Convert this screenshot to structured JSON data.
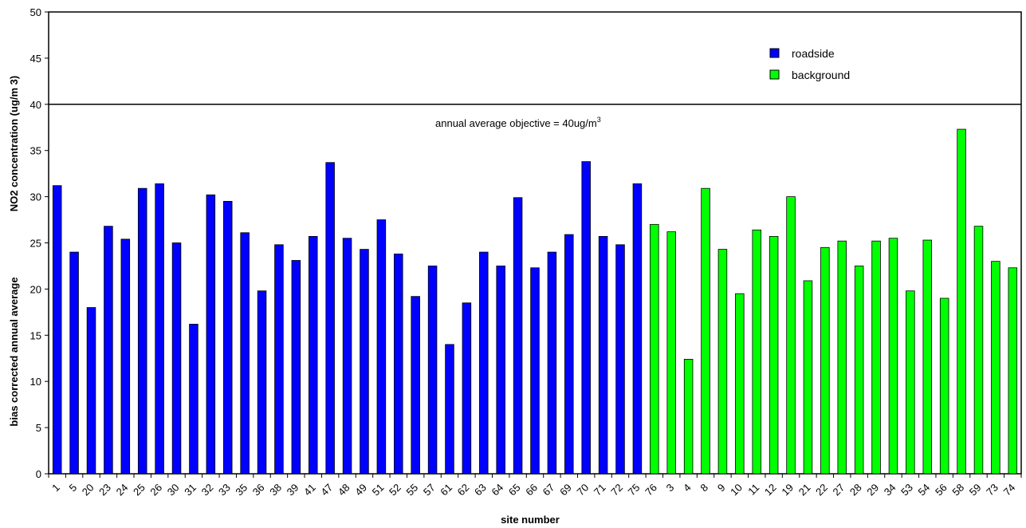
{
  "chart_data": {
    "type": "bar",
    "xlabel": "site number",
    "ylabel_line1": "bias corrected annual average",
    "ylabel_line2": "NO2 concentration (ug/m 3)",
    "ylim": [
      0,
      50
    ],
    "yticks": [
      0,
      5,
      10,
      15,
      20,
      25,
      30,
      35,
      40,
      45,
      50
    ],
    "grid": false,
    "legend_position": "top-right",
    "objective": {
      "value": 40,
      "label": "annual average objective = 40ug/m",
      "label_superscript": "3"
    },
    "series": [
      {
        "name": "roadside",
        "color": "#0000ff",
        "categories": [
          "1",
          "5",
          "20",
          "23",
          "24",
          "25",
          "26",
          "30",
          "31",
          "32",
          "33",
          "35",
          "36",
          "38",
          "39",
          "41",
          "47",
          "48",
          "49",
          "51",
          "52",
          "55",
          "57",
          "61",
          "62",
          "63",
          "64",
          "65",
          "66",
          "67",
          "69",
          "70",
          "71",
          "72",
          "75",
          "76"
        ],
        "values": [
          31.2,
          24.0,
          18.0,
          26.8,
          25.4,
          30.9,
          31.4,
          25.0,
          16.2,
          30.2,
          29.5,
          26.1,
          19.8,
          24.8,
          23.1,
          25.7,
          33.7,
          25.5,
          24.3,
          27.5,
          23.8,
          19.2,
          22.5,
          14.0,
          18.5,
          24.0,
          22.5,
          29.9,
          22.3,
          24.0,
          25.9,
          33.8,
          25.7,
          24.8,
          31.4,
          27.0
        ],
        "colors": [
          "#0000ff",
          "#0000ff",
          "#0000ff",
          "#0000ff",
          "#0000ff",
          "#0000ff",
          "#0000ff",
          "#0000ff",
          "#0000ff",
          "#0000ff",
          "#0000ff",
          "#0000ff",
          "#0000ff",
          "#0000ff",
          "#0000ff",
          "#0000ff",
          "#0000ff",
          "#0000ff",
          "#0000ff",
          "#0000ff",
          "#0000ff",
          "#0000ff",
          "#0000ff",
          "#0000ff",
          "#0000ff",
          "#0000ff",
          "#0000ff",
          "#0000ff",
          "#0000ff",
          "#0000ff",
          "#0000ff",
          "#0000ff",
          "#0000ff",
          "#0000ff",
          "#0000ff",
          "#00ff00"
        ]
      },
      {
        "name": "background",
        "color": "#00ff00",
        "categories": [
          "3",
          "4",
          "8",
          "9",
          "10",
          "11",
          "12",
          "19",
          "21",
          "22",
          "27",
          "28",
          "29",
          "34",
          "53",
          "54",
          "56",
          "58",
          "59",
          "73",
          "74"
        ],
        "values": [
          26.2,
          12.4,
          30.9,
          24.3,
          19.5,
          26.4,
          25.7,
          30.0,
          20.9,
          24.5,
          25.2,
          22.5,
          25.2,
          25.5,
          19.8,
          25.3,
          19.0,
          37.3,
          26.8,
          23.0,
          22.3
        ]
      }
    ]
  }
}
